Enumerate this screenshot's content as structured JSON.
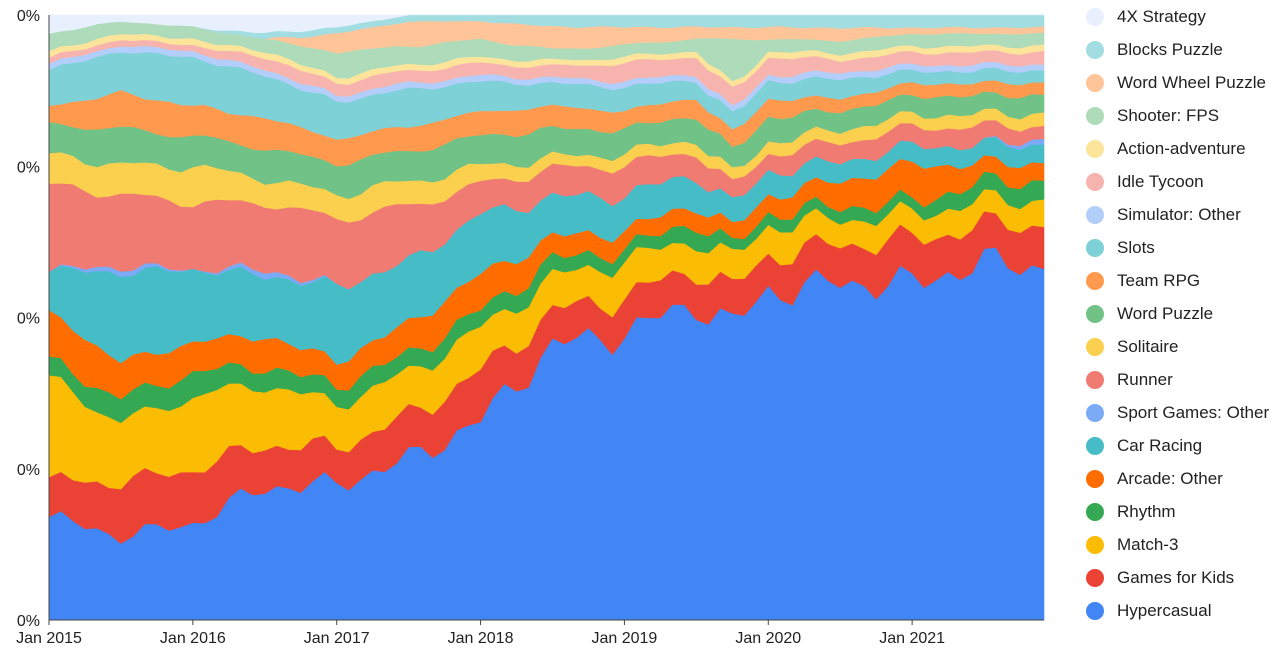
{
  "chart_data": {
    "type": "area",
    "stacked": true,
    "normalized": true,
    "title": "",
    "xlabel": "",
    "ylabel": "",
    "x_tick_labels": [
      "Jan 2015",
      "Jan 2016",
      "Jan 2017",
      "Jan 2018",
      "Jan 2019",
      "Jan 2020",
      "Jan 2021"
    ],
    "y_tick_labels": [
      "0%",
      "0%",
      "0%",
      "0%",
      "0%"
    ],
    "x_start": "2015-01",
    "x_end": "2021-12",
    "grid": false,
    "legend_position": "right",
    "keyframes": [
      "2015-01",
      "2015-07",
      "2016-01",
      "2016-07",
      "2017-01",
      "2017-07",
      "2018-01",
      "2018-07",
      "2019-01",
      "2019-07",
      "2019-10",
      "2020-01",
      "2020-07",
      "2021-01",
      "2021-07",
      "2021-12"
    ],
    "series": [
      {
        "name": "Hypercasual",
        "color": "#4285f4",
        "values": [
          0.17,
          0.14,
          0.16,
          0.22,
          0.22,
          0.26,
          0.33,
          0.48,
          0.48,
          0.54,
          0.49,
          0.55,
          0.53,
          0.54,
          0.58,
          0.58
        ]
      },
      {
        "name": "Games for Kids",
        "color": "#ea4335",
        "values": [
          0.06,
          0.09,
          0.09,
          0.07,
          0.06,
          0.07,
          0.08,
          0.06,
          0.06,
          0.06,
          0.06,
          0.06,
          0.06,
          0.07,
          0.06,
          0.07
        ]
      },
      {
        "name": "Match-3",
        "color": "#fbbc04",
        "values": [
          0.17,
          0.1,
          0.12,
          0.1,
          0.07,
          0.07,
          0.07,
          0.06,
          0.06,
          0.05,
          0.05,
          0.05,
          0.04,
          0.04,
          0.04,
          0.04
        ]
      },
      {
        "name": "Rhythm",
        "color": "#34a853",
        "values": [
          0.03,
          0.04,
          0.04,
          0.03,
          0.03,
          0.03,
          0.03,
          0.03,
          0.02,
          0.03,
          0.02,
          0.02,
          0.02,
          0.02,
          0.03,
          0.03
        ]
      },
      {
        "name": "Arcade: Other",
        "color": "#ff6d01",
        "values": [
          0.08,
          0.06,
          0.05,
          0.05,
          0.04,
          0.05,
          0.06,
          0.04,
          0.03,
          0.03,
          0.03,
          0.03,
          0.04,
          0.06,
          0.03,
          0.03
        ]
      },
      {
        "name": "Car Racing",
        "color": "#46bdc6",
        "values": [
          0.07,
          0.15,
          0.12,
          0.1,
          0.12,
          0.1,
          0.1,
          0.07,
          0.06,
          0.05,
          0.04,
          0.04,
          0.03,
          0.03,
          0.03,
          0.03
        ]
      },
      {
        "name": "Sport Games: Other",
        "color": "#7baaf7",
        "values": [
          0.0,
          0.01,
          0.0,
          0.01,
          0.0,
          0.0,
          0.0,
          0.0,
          0.0,
          0.0,
          0.0,
          0.0,
          0.0,
          0.0,
          0.0,
          0.01
        ]
      },
      {
        "name": "Runner",
        "color": "#f07b72",
        "values": [
          0.14,
          0.12,
          0.11,
          0.11,
          0.11,
          0.09,
          0.05,
          0.05,
          0.05,
          0.04,
          0.03,
          0.03,
          0.03,
          0.03,
          0.03,
          0.02
        ]
      },
      {
        "name": "Solitaire",
        "color": "#fcd04f",
        "values": [
          0.05,
          0.05,
          0.06,
          0.04,
          0.04,
          0.04,
          0.03,
          0.02,
          0.02,
          0.02,
          0.02,
          0.02,
          0.02,
          0.02,
          0.02,
          0.02
        ]
      },
      {
        "name": "Word Puzzle",
        "color": "#71c287",
        "values": [
          0.05,
          0.06,
          0.05,
          0.05,
          0.05,
          0.05,
          0.05,
          0.05,
          0.04,
          0.04,
          0.04,
          0.04,
          0.03,
          0.03,
          0.03,
          0.03
        ]
      },
      {
        "name": "Team RPG",
        "color": "#ff994d",
        "values": [
          0.03,
          0.06,
          0.05,
          0.05,
          0.04,
          0.04,
          0.04,
          0.04,
          0.03,
          0.03,
          0.03,
          0.03,
          0.02,
          0.02,
          0.02,
          0.02
        ]
      },
      {
        "name": "Slots",
        "color": "#7ed1d7",
        "values": [
          0.06,
          0.07,
          0.08,
          0.07,
          0.06,
          0.06,
          0.05,
          0.04,
          0.04,
          0.03,
          0.03,
          0.03,
          0.03,
          0.02,
          0.02,
          0.02
        ]
      },
      {
        "name": "Simulator: Other",
        "color": "#b3cefb",
        "values": [
          0.01,
          0.01,
          0.01,
          0.01,
          0.01,
          0.01,
          0.01,
          0.01,
          0.01,
          0.01,
          0.01,
          0.01,
          0.01,
          0.01,
          0.01,
          0.01
        ]
      },
      {
        "name": "Idle Tycoon",
        "color": "#f7b4ae",
        "values": [
          0.01,
          0.01,
          0.01,
          0.02,
          0.02,
          0.02,
          0.02,
          0.02,
          0.03,
          0.03,
          0.03,
          0.03,
          0.02,
          0.02,
          0.02,
          0.02
        ]
      },
      {
        "name": "Action-adventure",
        "color": "#fde49b",
        "values": [
          0.01,
          0.01,
          0.01,
          0.01,
          0.01,
          0.01,
          0.01,
          0.01,
          0.01,
          0.01,
          0.01,
          0.01,
          0.01,
          0.01,
          0.01,
          0.01
        ]
      },
      {
        "name": "Shooter: FPS",
        "color": "#aedcba",
        "values": [
          0.03,
          0.02,
          0.02,
          0.02,
          0.04,
          0.03,
          0.03,
          0.02,
          0.02,
          0.02,
          0.08,
          0.02,
          0.02,
          0.02,
          0.02,
          0.02
        ]
      },
      {
        "name": "Word Wheel Puzzle",
        "color": "#ffc599",
        "values": [
          0.0,
          0.0,
          0.0,
          0.0,
          0.03,
          0.04,
          0.03,
          0.04,
          0.03,
          0.02,
          0.02,
          0.02,
          0.02,
          0.01,
          0.01,
          0.01
        ]
      },
      {
        "name": "Blocks Puzzle",
        "color": "#a1dde1",
        "values": [
          0.0,
          0.0,
          0.0,
          0.01,
          0.01,
          0.01,
          0.01,
          0.02,
          0.02,
          0.02,
          0.02,
          0.02,
          0.02,
          0.02,
          0.02,
          0.02
        ]
      },
      {
        "name": "4X Strategy",
        "color": "#e8f0fe",
        "values": [
          0.03,
          0.01,
          0.02,
          0.03,
          0.02,
          0.0,
          0.0,
          0.0,
          0.0,
          0.0,
          0.0,
          0.0,
          0.0,
          0.0,
          0.0,
          0.0
        ]
      }
    ]
  }
}
